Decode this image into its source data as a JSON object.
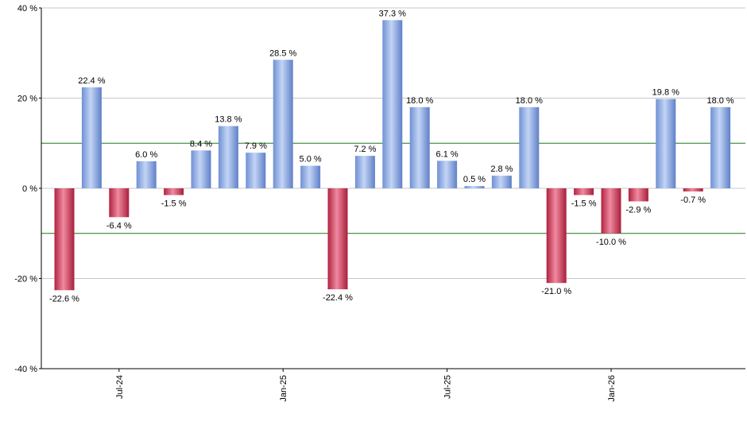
{
  "chart_data": {
    "type": "bar",
    "title": "",
    "xlabel": "",
    "ylabel": "",
    "ylim": [
      -40,
      40
    ],
    "yticks": [
      40,
      20,
      0,
      -20,
      -40
    ],
    "ytick_labels": [
      "40 %",
      "20 %",
      "0 %",
      "-20 %",
      "-40 %"
    ],
    "reference_lines": [
      10,
      -10
    ],
    "x_tick_labels": [
      "Jul-24",
      "Jan-25",
      "Jul-25",
      "Jan-26"
    ],
    "x_tick_positions": [
      2,
      8,
      14,
      20
    ],
    "values": [
      -22.6,
      22.4,
      -6.4,
      6.0,
      -1.5,
      8.4,
      13.8,
      7.9,
      28.5,
      5.0,
      -22.4,
      7.2,
      37.3,
      18.0,
      6.1,
      0.5,
      2.8,
      18.0,
      -21.0,
      -1.5,
      -10.0,
      -2.9,
      19.8,
      -0.7,
      18.0
    ],
    "labels": [
      "-22.6 %",
      "22.4 %",
      "-6.4 %",
      "6.0 %",
      "-1.5 %",
      "8.4 %",
      "13.8 %",
      "7.9 %",
      "28.5 %",
      "5.0 %",
      "-22.4 %",
      "7.2 %",
      "37.3 %",
      "18.0 %",
      "6.1 %",
      "0.5 %",
      "2.8 %",
      "18.0 %",
      "-21.0 %",
      "-1.5 %",
      "-10.0 %",
      "-2.9 %",
      "19.8 %",
      "-0.7 %",
      "18.0 %"
    ],
    "grid": true,
    "colors": {
      "positive": "#7a9fe0",
      "positive_light": "#c3d5f5",
      "negative": "#c2304e",
      "negative_light": "#f08aa0",
      "reference_line": "#1a7a1a",
      "grid": "#c8c8c8",
      "axis": "#000000"
    }
  }
}
